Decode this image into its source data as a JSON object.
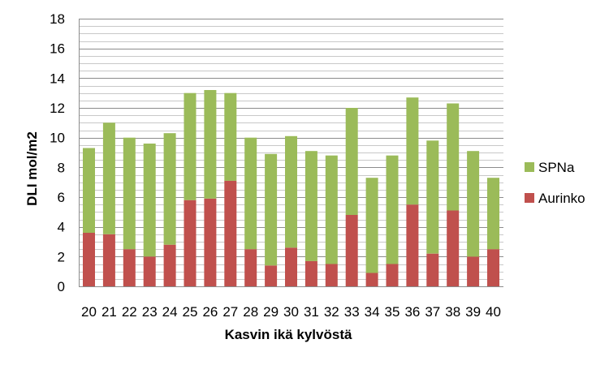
{
  "chart_data": {
    "type": "bar",
    "stacked": true,
    "title": "",
    "xlabel": "Kasvin ikä kylvöstä",
    "ylabel": "DLI mol/m2",
    "ylim": [
      0,
      18
    ],
    "yticks": [
      "0",
      "2",
      "4",
      "6",
      "8",
      "10",
      "12",
      "14",
      "16",
      "18"
    ],
    "grid": true,
    "legend_position": "right",
    "categories": [
      "20",
      "21",
      "22",
      "23",
      "24",
      "25",
      "26",
      "27",
      "28",
      "29",
      "30",
      "31",
      "32",
      "33",
      "34",
      "35",
      "36",
      "37",
      "38",
      "39",
      "40"
    ],
    "series": [
      {
        "name": "Aurinko",
        "color": "#c0504d",
        "values": [
          3.6,
          3.5,
          2.5,
          2.0,
          2.8,
          5.8,
          5.9,
          7.1,
          2.5,
          1.4,
          2.6,
          1.7,
          1.5,
          4.8,
          0.9,
          1.5,
          5.5,
          2.2,
          5.1,
          2.0,
          2.5
        ]
      },
      {
        "name": "SPNa",
        "color": "#9bbb59",
        "values": [
          5.7,
          7.5,
          7.5,
          7.6,
          7.5,
          7.2,
          7.3,
          5.9,
          7.5,
          7.5,
          7.5,
          7.4,
          7.3,
          7.2,
          6.4,
          7.3,
          7.2,
          7.6,
          7.2,
          7.1,
          4.8
        ]
      }
    ]
  }
}
